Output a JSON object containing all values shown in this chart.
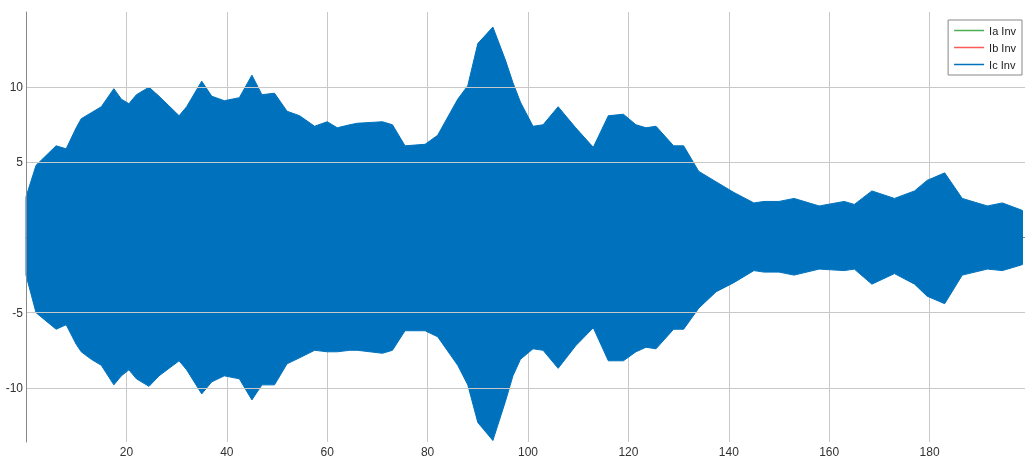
{
  "chart_data": {
    "type": "line",
    "x": [
      0,
      2,
      6,
      8,
      10,
      11,
      13,
      15,
      17.5,
      19,
      20.5,
      22,
      24.5,
      26.5,
      30.5,
      32,
      35,
      37,
      39.5,
      42.5,
      45,
      47,
      49.5,
      52,
      54.5,
      57.5,
      60,
      62,
      64.5,
      66,
      71,
      73,
      75.5,
      79.5,
      82,
      86,
      88,
      90,
      93,
      95.5,
      97,
      98.5,
      101,
      103,
      106,
      109.5,
      113,
      116,
      119,
      121.5,
      123.5,
      125.5,
      129,
      131,
      134,
      137.5,
      141,
      145,
      147,
      150,
      153,
      158,
      163,
      165,
      168.5,
      173,
      177,
      179.5,
      183,
      186.5,
      191.5,
      194.5,
      198.5
    ],
    "series": [
      {
        "name": "Ia Inv",
        "color": "#4caf50",
        "values": [
          null,
          null,
          null,
          null,
          null,
          null,
          null,
          null,
          null,
          null,
          null,
          null,
          null,
          null,
          null,
          null,
          null,
          null,
          null,
          null,
          null,
          null,
          null,
          null,
          null,
          null,
          null,
          null,
          null,
          null,
          null,
          null,
          null,
          null,
          null,
          null,
          null,
          null,
          null,
          null,
          null,
          null,
          null,
          null,
          null,
          null,
          null,
          null,
          null,
          null,
          null,
          null,
          null,
          null,
          null,
          null,
          null,
          null,
          null,
          null,
          null,
          null,
          null,
          null,
          null,
          null,
          null,
          null,
          null,
          null,
          null,
          null,
          null
        ]
      },
      {
        "name": "Ib Inv",
        "color": "#ff5a5a",
        "values": [
          null,
          null,
          null,
          null,
          null,
          null,
          null,
          null,
          null,
          null,
          null,
          null,
          null,
          null,
          null,
          null,
          null,
          null,
          null,
          null,
          null,
          null,
          null,
          null,
          null,
          null,
          null,
          null,
          null,
          null,
          null,
          null,
          null,
          null,
          null,
          null,
          null,
          null,
          null,
          null,
          null,
          null,
          null,
          null,
          null,
          null,
          null,
          null,
          null,
          null,
          null,
          null,
          null,
          null,
          null,
          null,
          null,
          null,
          null,
          null,
          null,
          null,
          null,
          null,
          null,
          null,
          null,
          null,
          null,
          null,
          null,
          null,
          null
        ]
      },
      {
        "name": "Ic Inv",
        "color": "#0072bd",
        "values": [
          null,
          null,
          null,
          null,
          null,
          null,
          null,
          null,
          null,
          null,
          null,
          null,
          null,
          null,
          null,
          null,
          null,
          null,
          null,
          null,
          null,
          null,
          null,
          null,
          null,
          null,
          null,
          null,
          null,
          null,
          null,
          null,
          null,
          null,
          null,
          null,
          null,
          null,
          null,
          null,
          null,
          null,
          null,
          null,
          null,
          null,
          null,
          null,
          null,
          null,
          null,
          null,
          null,
          null,
          null,
          null,
          null,
          null,
          null,
          null,
          null,
          null,
          null,
          null,
          null,
          null,
          null,
          null,
          null,
          null,
          null,
          null,
          null
        ],
        "upper": [
          2.7,
          4.8,
          6.1,
          5.9,
          7.3,
          7.9,
          8.3,
          8.7,
          9.9,
          9.2,
          8.9,
          9.5,
          10.0,
          9.4,
          8.1,
          8.7,
          10.4,
          9.4,
          9.1,
          9.3,
          10.8,
          9.5,
          9.6,
          8.4,
          8.1,
          7.4,
          7.7,
          7.3,
          7.5,
          7.6,
          7.7,
          7.5,
          6.1,
          6.2,
          6.8,
          9.2,
          10.1,
          12.9,
          14.0,
          11.8,
          10.3,
          9.0,
          7.4,
          7.5,
          8.7,
          7.3,
          6.0,
          8.1,
          8.2,
          7.5,
          7.3,
          7.4,
          6.1,
          6.1,
          4.4,
          3.7,
          3.0,
          2.3,
          2.4,
          2.4,
          2.6,
          2.1,
          2.4,
          2.2,
          3.1,
          2.6,
          3.1,
          3.8,
          4.3,
          2.6,
          2.1,
          2.3,
          1.8
        ],
        "lower": [
          -2.5,
          -5.0,
          -6.1,
          -5.8,
          -7.1,
          -7.6,
          -8.1,
          -8.5,
          -9.8,
          -9.2,
          -8.8,
          -9.4,
          -9.9,
          -9.2,
          -8.2,
          -8.8,
          -10.4,
          -9.6,
          -9.2,
          -9.4,
          -10.8,
          -9.8,
          -9.8,
          -8.4,
          -8.0,
          -7.5,
          -7.6,
          -7.6,
          -7.5,
          -7.5,
          -7.7,
          -7.5,
          -6.2,
          -6.2,
          -6.6,
          -8.5,
          -9.8,
          -12.3,
          -13.5,
          -10.9,
          -9.2,
          -8.1,
          -7.4,
          -7.5,
          -8.7,
          -7.2,
          -6.0,
          -8.2,
          -8.2,
          -7.6,
          -7.3,
          -7.4,
          -6.1,
          -6.1,
          -4.7,
          -3.6,
          -3.0,
          -2.2,
          -2.3,
          -2.3,
          -2.5,
          -2.1,
          -2.2,
          -2.1,
          -3.1,
          -2.4,
          -3.1,
          -3.9,
          -4.4,
          -2.5,
          -2.1,
          -2.2,
          -1.8
        ]
      }
    ],
    "xlim": [
      0,
      199
    ],
    "xticks": [
      20,
      40,
      60,
      80,
      100,
      120,
      140,
      160,
      180
    ],
    "ylim": [
      -13.6,
      15
    ],
    "yticks": [
      -10,
      -5,
      5,
      10
    ],
    "grid": true,
    "legend": "top right"
  }
}
